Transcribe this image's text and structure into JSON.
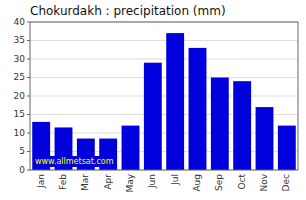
{
  "chart_data": {
    "type": "bar",
    "title": "Chokurdakh : precipitation (mm)",
    "categories": [
      "Jan",
      "Feb",
      "Mar",
      "Apr",
      "May",
      "Jun",
      "Jul",
      "Aug",
      "Sep",
      "Oct",
      "Nov",
      "Dec"
    ],
    "values": [
      13,
      11.5,
      8.5,
      8.5,
      12,
      29,
      37,
      33,
      25,
      24,
      17,
      12
    ],
    "color": "#0000DD",
    "ylim": [
      0,
      40
    ],
    "yticks": [
      0,
      5,
      10,
      15,
      20,
      25,
      30,
      35,
      40
    ],
    "grid": true,
    "annotations": [
      "www.allmetsat.com"
    ]
  }
}
